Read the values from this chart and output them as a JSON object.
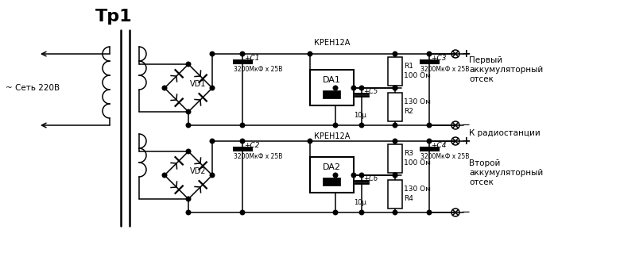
{
  "bg_color": "#ffffff",
  "lc": "#000000",
  "title": "Тр1",
  "sety": "~ Сеть 220В",
  "vd1": "VD1",
  "vd2": "VD2",
  "c1": "+C1",
  "c1_val": "3200МкФ х 25В",
  "c2": "+C2",
  "c2_val": "3200МкФ х 25В",
  "c3": "+C3",
  "c3_val": "3200МкФ х 25В",
  "c4": "+C4",
  "c4_val": "3200МкФ х 25В",
  "c5": "+C5",
  "c5_val": "10µ",
  "c6": "+C6",
  "c6_val": "10µ",
  "r1": "R1",
  "r1_val": "100 Ом",
  "r2_top": "130 Ом",
  "r2_bot": "R2",
  "r3": "R3",
  "r3_val": "100 Ом",
  "r4_top": "130 Ом",
  "r4_bot": "R4",
  "da1": "DA1",
  "da1_label": "КРЕН12А",
  "da2": "DA2",
  "da2_label": "КРЕН12А",
  "perviy": "Первый\nаккумуляторный\nотсек",
  "k_radio": "К радиостанции",
  "vtoroy": "Второй\nаккумуляторный\nотсек"
}
